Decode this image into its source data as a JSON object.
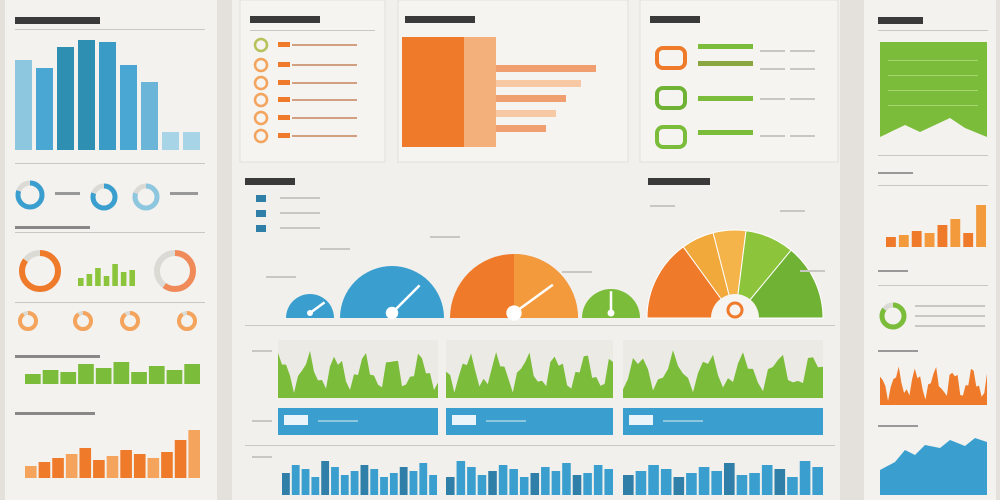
{
  "colors": {
    "background": "#e4e1dc",
    "panel": "#f3f2ef",
    "blue": "#3a9fcf",
    "teal": "#2f8fb3",
    "light_blue": "#8cc6df",
    "orange": "#ee7a2a",
    "light_orange": "#f4a45c",
    "green": "#7bbd3a",
    "yellow": "#f2a93b",
    "text_gray": "#9a9a9a"
  },
  "left_panel": {
    "top_bars": [
      90,
      82,
      103,
      110,
      108,
      85,
      68,
      18,
      18
    ],
    "mini_green_bars": [
      8,
      12,
      18,
      10,
      22,
      14,
      16
    ],
    "green_area_bars": [
      10,
      14,
      12,
      20,
      16,
      22,
      12,
      18,
      14,
      20
    ],
    "orange_bars": [
      12,
      16,
      20,
      24,
      30,
      18,
      22,
      28,
      24,
      20,
      26,
      38,
      48
    ]
  },
  "middle_panel": {
    "orange_hbars": [
      100,
      85,
      70,
      60,
      50
    ],
    "green_hbars": [
      55,
      55,
      55,
      55
    ],
    "gauges": [
      {
        "color": "#3a9fcf",
        "needle": 0.8
      },
      {
        "color": "#3a9fcf",
        "needle": 0.75
      },
      {
        "color": "#ee7a2a",
        "needle": 0.8
      },
      {
        "color": "#7bbd3a",
        "needle": 0.5
      }
    ],
    "pie_slices": [
      {
        "value": 30,
        "color": "#ee7a2a"
      },
      {
        "value": 12,
        "color": "#f2a93b"
      },
      {
        "value": 12,
        "color": "#f4b44a"
      },
      {
        "value": 18,
        "color": "#8cc43c"
      },
      {
        "value": 28,
        "color": "#6fb234"
      }
    ],
    "blue_bars": [
      22,
      30,
      26,
      18,
      34,
      28,
      20,
      24,
      30,
      26,
      18,
      22,
      28,
      24,
      32,
      20
    ]
  },
  "right_panel": {
    "orange_bars": [
      10,
      12,
      16,
      14,
      22,
      28,
      14,
      42
    ],
    "green_donut_fill": 0.85
  }
}
